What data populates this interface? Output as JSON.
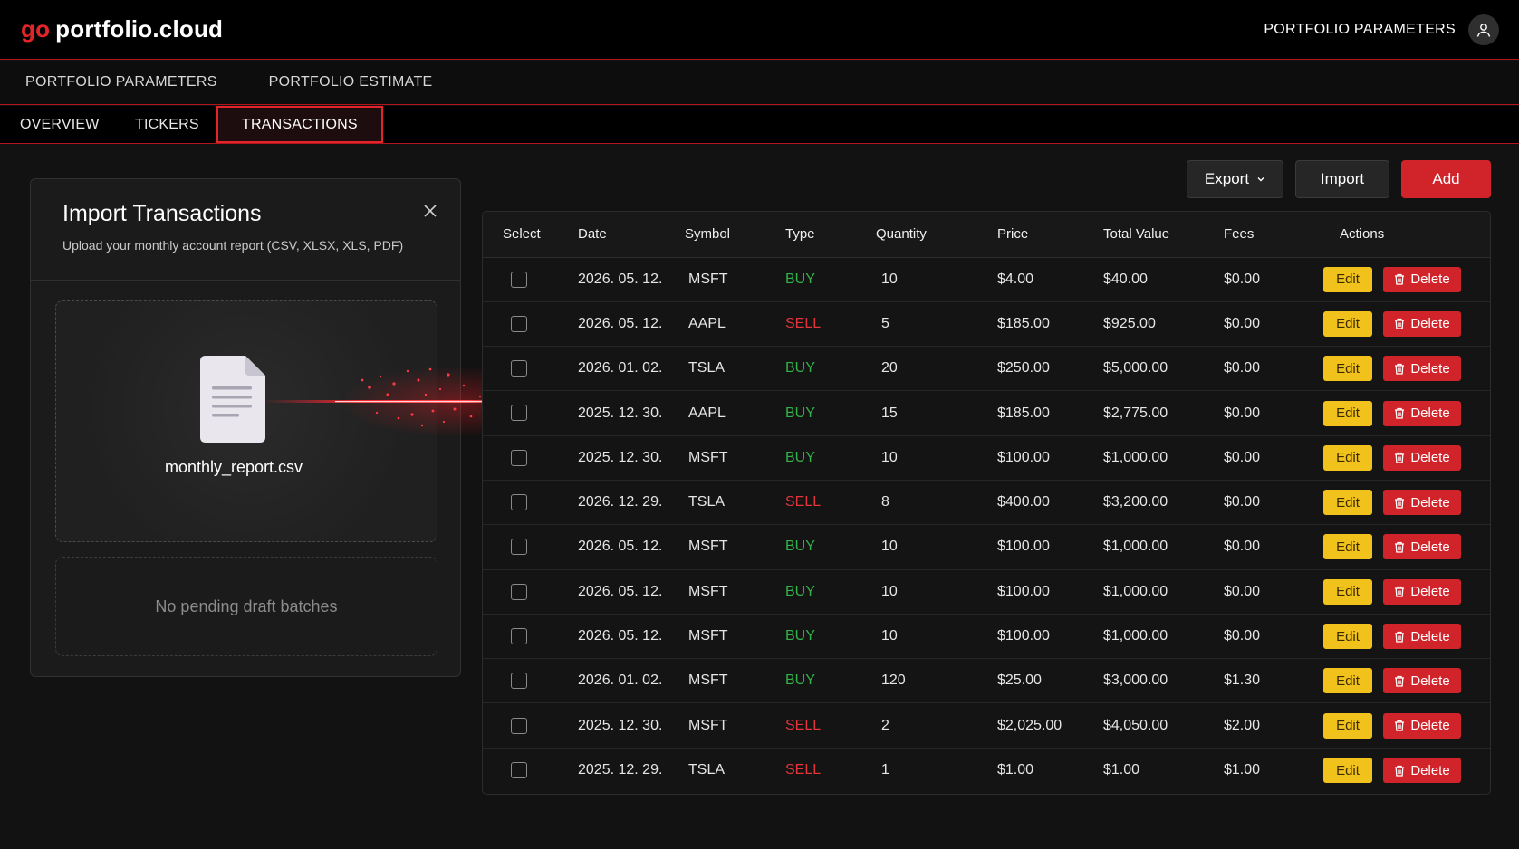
{
  "brand": {
    "prefix": "go",
    "name": "portfolio.cloud"
  },
  "header": {
    "right_link": "PORTFOLIO PARAMETERS",
    "avatar_icon": "user-icon"
  },
  "main_nav": [
    "PORTFOLIO PARAMETERS",
    "PORTFOLIO ESTIMATE"
  ],
  "sub_nav": {
    "items": [
      "OVERVIEW",
      "TICKERS",
      "TRANSACTIONS"
    ],
    "active": "TRANSACTIONS"
  },
  "import_panel": {
    "title": "Import Transactions",
    "subtitle": "Upload your monthly account report (CSV, XLSX, XLS, PDF)",
    "file_name": "monthly_report.csv",
    "draft_text": "No pending draft batches"
  },
  "toolbar": {
    "export_label": "Export",
    "import_label": "Import",
    "add_label": "Add"
  },
  "table": {
    "headers": [
      "Select",
      "Date",
      "Symbol",
      "Type",
      "Quantity",
      "Price",
      "Total Value",
      "Fees",
      "Actions"
    ],
    "edit_label": "Edit",
    "delete_label": "Delete",
    "rows": [
      {
        "date": "2026. 05. 12.",
        "symbol": "MSFT",
        "type": "BUY",
        "quantity": "10",
        "price": "$4.00",
        "total": "$40.00",
        "fees": "$0.00"
      },
      {
        "date": "2026. 05. 12.",
        "symbol": "AAPL",
        "type": "SELL",
        "quantity": "5",
        "price": "$185.00",
        "total": "$925.00",
        "fees": "$0.00"
      },
      {
        "date": "2026. 01. 02.",
        "symbol": "TSLA",
        "type": "BUY",
        "quantity": "20",
        "price": "$250.00",
        "total": "$5,000.00",
        "fees": "$0.00"
      },
      {
        "date": "2025. 12. 30.",
        "symbol": "AAPL",
        "type": "BUY",
        "quantity": "15",
        "price": "$185.00",
        "total": "$2,775.00",
        "fees": "$0.00"
      },
      {
        "date": "2025. 12. 30.",
        "symbol": "MSFT",
        "type": "BUY",
        "quantity": "10",
        "price": "$100.00",
        "total": "$1,000.00",
        "fees": "$0.00"
      },
      {
        "date": "2026. 12. 29.",
        "symbol": "TSLA",
        "type": "SELL",
        "quantity": "8",
        "price": "$400.00",
        "total": "$3,200.00",
        "fees": "$0.00"
      },
      {
        "date": "2026. 05. 12.",
        "symbol": "MSFT",
        "type": "BUY",
        "quantity": "10",
        "price": "$100.00",
        "total": "$1,000.00",
        "fees": "$0.00"
      },
      {
        "date": "2026. 05. 12.",
        "symbol": "MSFT",
        "type": "BUY",
        "quantity": "10",
        "price": "$100.00",
        "total": "$1,000.00",
        "fees": "$0.00"
      },
      {
        "date": "2026. 05. 12.",
        "symbol": "MSFT",
        "type": "BUY",
        "quantity": "10",
        "price": "$100.00",
        "total": "$1,000.00",
        "fees": "$0.00"
      },
      {
        "date": "2026. 01. 02.",
        "symbol": "MSFT",
        "type": "BUY",
        "quantity": "120",
        "price": "$25.00",
        "total": "$3,000.00",
        "fees": "$1.30"
      },
      {
        "date": "2025. 12. 30.",
        "symbol": "MSFT",
        "type": "SELL",
        "quantity": "2",
        "price": "$2,025.00",
        "total": "$4,050.00",
        "fees": "$2.00"
      },
      {
        "date": "2025. 12. 29.",
        "symbol": "TSLA",
        "type": "SELL",
        "quantity": "1",
        "price": "$1.00",
        "total": "$1.00",
        "fees": "$1.00"
      }
    ]
  },
  "colors": {
    "accent": "#e3242b",
    "buy": "#33b24a",
    "sell": "#e3343b",
    "edit": "#f1c21b"
  }
}
